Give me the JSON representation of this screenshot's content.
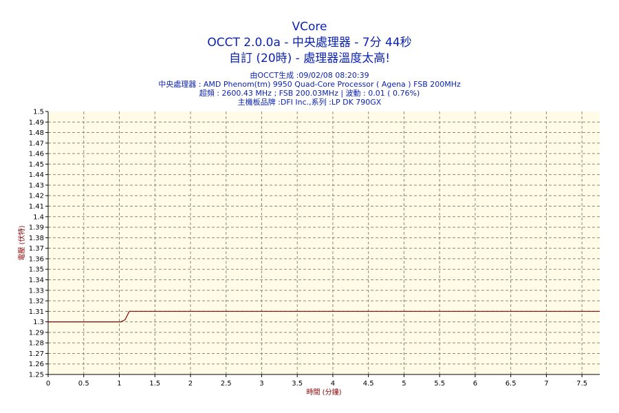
{
  "header": {
    "title": "VCore",
    "line2": "OCCT 2.0.0a - 中央處理器 - 7分 44秒",
    "line3": "自訂 (20時) - 處理器溫度太高!",
    "info1": "由OCCT生成 :09/02/08 08:20:39",
    "info2": "中央處理器 : AMD Phenom(tm) 9950 Quad-Core Processor ( Agena ) FSB 200MHz",
    "info3": "超頻 : 2600.43 MHz ; FSB 200.03MHz | 波動 : 0.01 ( 0.76%)",
    "info4": "主機板品牌 :DFI Inc.,系列 :LP DK 790GX"
  },
  "colors": {
    "title": "#0b22b0",
    "plot_background": "#fffbe7",
    "series_line": "#8b0000",
    "axis_title": "#8b0000"
  },
  "chart_data": {
    "type": "line",
    "title": "VCore",
    "xlabel": "時間 (分鐘)",
    "ylabel": "電壓 (伏特)",
    "xlim": [
      0,
      7.75
    ],
    "ylim": [
      1.25,
      1.5
    ],
    "x_ticks": [
      "0",
      "0.5",
      "1",
      "1.5",
      "2",
      "2.5",
      "3",
      "3.5",
      "4",
      "4.5",
      "5",
      "5.5",
      "6",
      "6.5",
      "7",
      "7.5"
    ],
    "y_ticks": [
      "1.25",
      "1.26",
      "1.27",
      "1.28",
      "1.29",
      "1.3",
      "1.31",
      "1.32",
      "1.33",
      "1.34",
      "1.35",
      "1.36",
      "1.37",
      "1.38",
      "1.39",
      "1.4",
      "1.41",
      "1.42",
      "1.43",
      "1.44",
      "1.45",
      "1.46",
      "1.47",
      "1.48",
      "1.49",
      "1.5"
    ],
    "grid": true,
    "series": [
      {
        "x": [
          0,
          1.02,
          1.08,
          1.14,
          7.75
        ],
        "y": [
          1.3,
          1.3,
          1.302,
          1.31,
          1.31
        ]
      }
    ]
  }
}
